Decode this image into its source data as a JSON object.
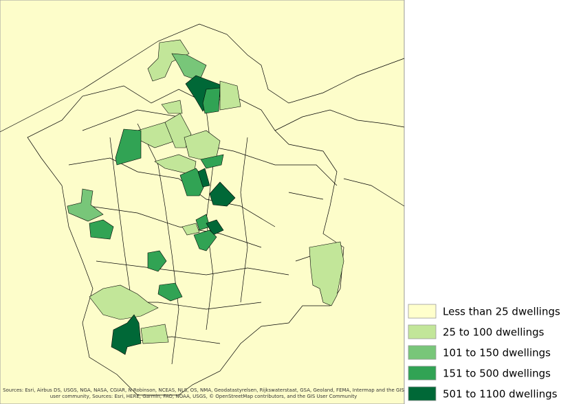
{
  "legend": {
    "items": [
      {
        "label": "Less than 25 dwellings",
        "color": "#ffffcc"
      },
      {
        "label": "25 to 100 dwellings",
        "color": "#c2e699"
      },
      {
        "label": "101 to 150 dwellings",
        "color": "#78c679"
      },
      {
        "label": "151 to 500 dwellings",
        "color": "#31a354"
      },
      {
        "label": "501 to 1100 dwellings",
        "color": "#006837"
      }
    ]
  },
  "attribution": {
    "lines": [
      "Sources: Esri, Airbus DS, USGS, NGA, NASA, CGIAR, N Robinson, NCEAS, NLS, OS, NMA, Geodatastyrelsen, Rijkswaterstaat, GSA, Geoland, FEMA, Intermap and the GIS",
      "user community, Sources: Esri, HERE, Garmin, FAO, NOAA, USGS, © OpenStreetMap contributors, and the GIS User Community"
    ]
  }
}
